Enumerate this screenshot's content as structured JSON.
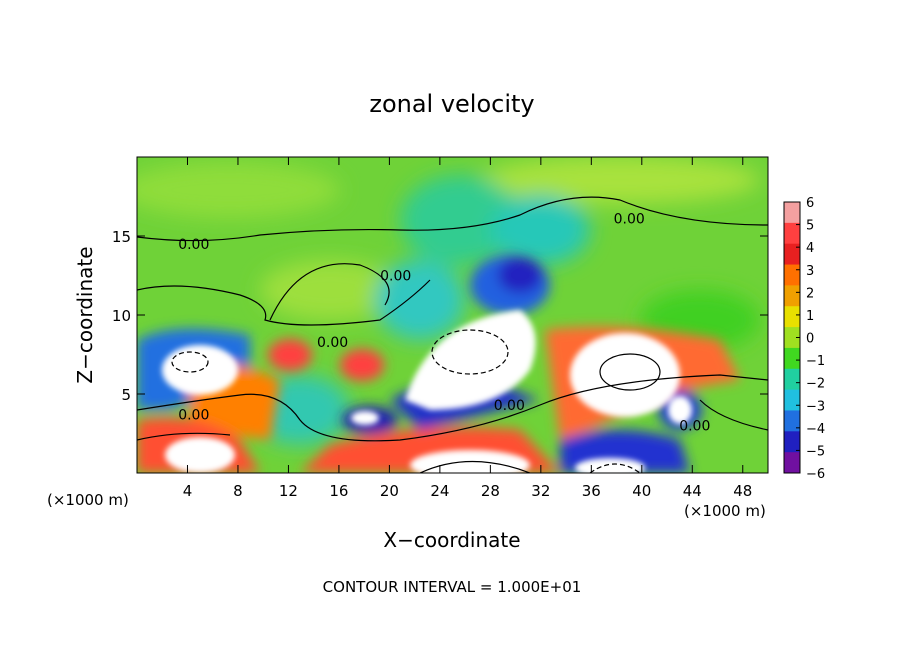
{
  "chart_data": {
    "type": "heatmap",
    "title": "zonal velocity",
    "xlabel": "X−coordinate",
    "ylabel": "Z−coordinate",
    "x_unit_left": "(×1000 m)",
    "x_unit_right": "(×1000 m)",
    "xlim": [
      0,
      50
    ],
    "ylim": [
      0,
      20
    ],
    "x_ticks": [
      4,
      8,
      12,
      16,
      20,
      24,
      28,
      32,
      36,
      40,
      44,
      48
    ],
    "x_tick_labels": [
      "4",
      "8",
      "12",
      "16",
      "20",
      "24",
      "28",
      "32",
      "36",
      "40",
      "44",
      "48"
    ],
    "y_ticks": [
      5,
      10,
      15
    ],
    "y_tick_labels": [
      "5",
      "10",
      "15"
    ],
    "colorbar": {
      "min": -6,
      "max": 6,
      "tick_values": [
        6,
        5,
        4,
        3,
        2,
        1,
        0,
        -1,
        -2,
        -3,
        -4,
        -5,
        -6
      ],
      "tick_labels": [
        "6",
        "5",
        "4",
        "3",
        "2",
        "1",
        "0",
        "−1",
        "−2",
        "−3",
        "−4",
        "−5",
        "−6"
      ],
      "colors": [
        "#f4a0a0",
        "#ff4040",
        "#e82020",
        "#ff7000",
        "#f0a000",
        "#e8e000",
        "#a0e020",
        "#40d820",
        "#20d0a0",
        "#20c0e0",
        "#2070e0",
        "#2020c0",
        "#7010a0"
      ]
    },
    "contour_labels": [
      {
        "text": "0.00",
        "x": 4.5,
        "y": 14.5
      },
      {
        "text": "0.00",
        "x": 20.5,
        "y": 12.5
      },
      {
        "text": "0.00",
        "x": 15.5,
        "y": 8.3
      },
      {
        "text": "0.00",
        "x": 4.5,
        "y": 3.7
      },
      {
        "text": "0.00",
        "x": 29.5,
        "y": 4.3
      },
      {
        "text": "0.00",
        "x": 39.0,
        "y": 16.1
      },
      {
        "text": "0.00",
        "x": 44.2,
        "y": 3.0
      }
    ],
    "footnote": "CONTOUR INTERVAL = 1.000E+01"
  }
}
